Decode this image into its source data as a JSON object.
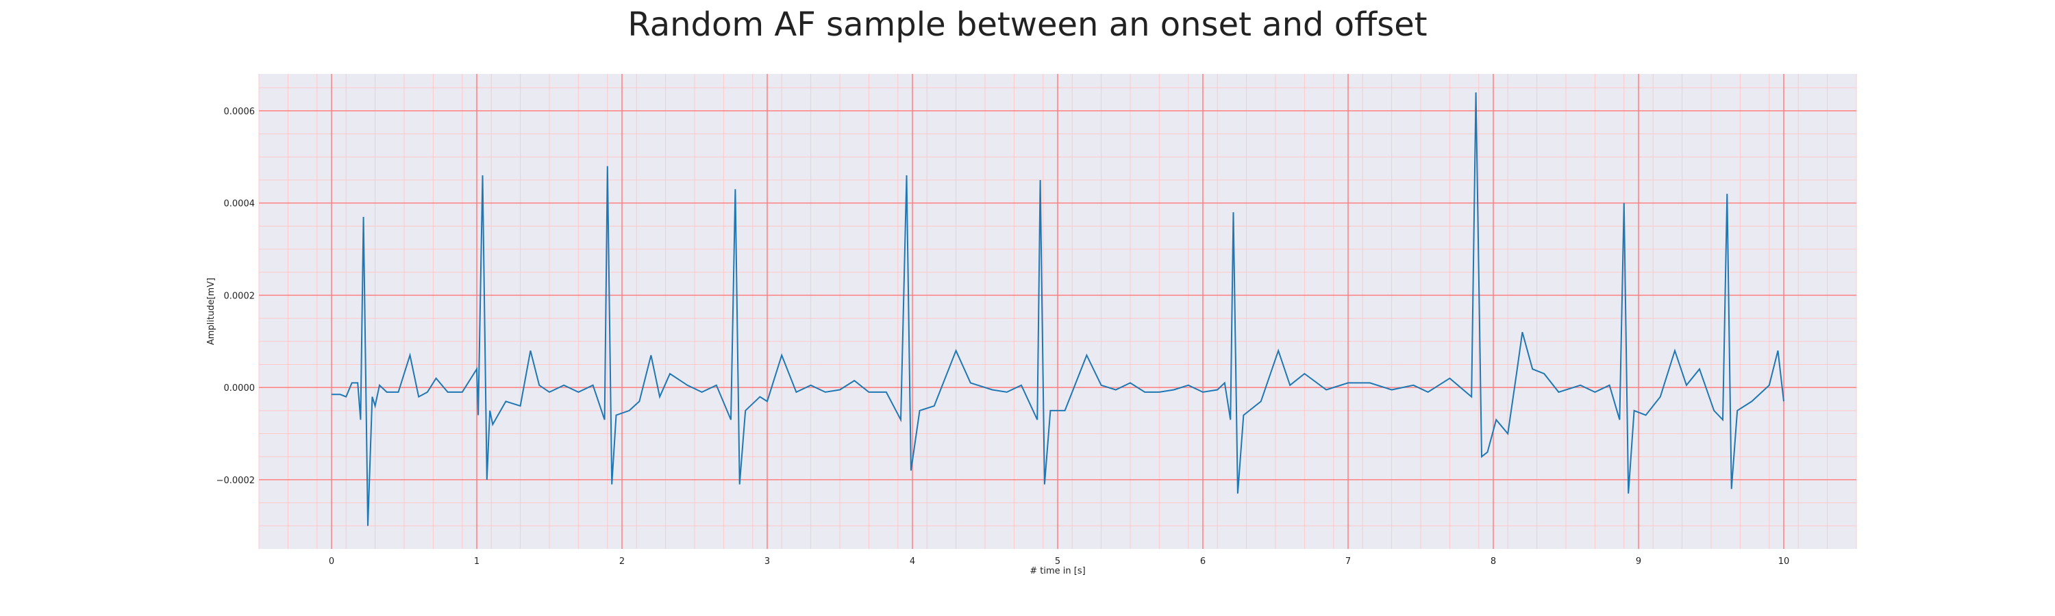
{
  "chart_data": {
    "type": "line",
    "title": "Random AF sample between an onset and offset",
    "xlabel": "# time in [s]",
    "ylabel": "Amplitude[mV]",
    "xlim": [
      -0.5,
      10.5
    ],
    "ylim": [
      -0.00035,
      0.00068
    ],
    "xticks": [
      0,
      1,
      2,
      3,
      4,
      5,
      6,
      7,
      8,
      9,
      10
    ],
    "xtick_labels": [
      "0",
      "1",
      "2",
      "3",
      "4",
      "5",
      "6",
      "7",
      "8",
      "9",
      "10"
    ],
    "yticks": [
      -0.0002,
      0.0,
      0.0002,
      0.0004,
      0.0006
    ],
    "ytick_labels": [
      "−0.0002",
      "0.0000",
      "0.0002",
      "0.0004",
      "0.0006"
    ],
    "grid": true,
    "minor_grid": true,
    "colors": {
      "plot_background": "#eaeaf2",
      "major_grid": "#ff8080",
      "minor_grid": "#ffc8c8",
      "line": "#1f77b4"
    },
    "series": [
      {
        "points": [
          [
            0.0,
            -1.5e-05
          ],
          [
            0.06,
            -1.5e-05
          ],
          [
            0.1,
            -2e-05
          ],
          [
            0.14,
            1e-05
          ],
          [
            0.18,
            1e-05
          ],
          [
            0.2,
            -7e-05
          ],
          [
            0.22,
            0.00037
          ],
          [
            0.25,
            -0.0003
          ],
          [
            0.28,
            -2e-05
          ],
          [
            0.3,
            -4e-05
          ],
          [
            0.33,
            5e-06
          ],
          [
            0.38,
            -1e-05
          ],
          [
            0.46,
            -1e-05
          ],
          [
            0.54,
            7e-05
          ],
          [
            0.6,
            -2e-05
          ],
          [
            0.66,
            -1e-05
          ],
          [
            0.72,
            2e-05
          ],
          [
            0.8,
            -1e-05
          ],
          [
            0.9,
            -1e-05
          ],
          [
            1.0,
            4e-05
          ],
          [
            1.01,
            -6e-05
          ],
          [
            1.04,
            0.00046
          ],
          [
            1.07,
            -0.0002
          ],
          [
            1.09,
            -5e-05
          ],
          [
            1.11,
            -8e-05
          ],
          [
            1.2,
            -3e-05
          ],
          [
            1.3,
            -4e-05
          ],
          [
            1.37,
            8e-05
          ],
          [
            1.43,
            5e-06
          ],
          [
            1.5,
            -1e-05
          ],
          [
            1.6,
            5e-06
          ],
          [
            1.7,
            -1e-05
          ],
          [
            1.8,
            5e-06
          ],
          [
            1.88,
            -7e-05
          ],
          [
            1.9,
            0.00048
          ],
          [
            1.93,
            -0.00021
          ],
          [
            1.96,
            -6e-05
          ],
          [
            2.05,
            -5e-05
          ],
          [
            2.12,
            -3e-05
          ],
          [
            2.2,
            7e-05
          ],
          [
            2.26,
            -2e-05
          ],
          [
            2.33,
            3e-05
          ],
          [
            2.45,
            5e-06
          ],
          [
            2.55,
            -1e-05
          ],
          [
            2.65,
            5e-06
          ],
          [
            2.75,
            -7e-05
          ],
          [
            2.78,
            0.00043
          ],
          [
            2.81,
            -0.00021
          ],
          [
            2.85,
            -5e-05
          ],
          [
            2.95,
            -2e-05
          ],
          [
            3.0,
            -3e-05
          ],
          [
            3.1,
            7e-05
          ],
          [
            3.2,
            -1e-05
          ],
          [
            3.3,
            5e-06
          ],
          [
            3.4,
            -1e-05
          ],
          [
            3.5,
            -5e-06
          ],
          [
            3.6,
            1.5e-05
          ],
          [
            3.7,
            -1e-05
          ],
          [
            3.82,
            -1e-05
          ],
          [
            3.92,
            -7e-05
          ],
          [
            3.96,
            0.00046
          ],
          [
            3.99,
            -0.00018
          ],
          [
            4.05,
            -5e-05
          ],
          [
            4.15,
            -4e-05
          ],
          [
            4.3,
            8e-05
          ],
          [
            4.4,
            1e-05
          ],
          [
            4.55,
            -5e-06
          ],
          [
            4.65,
            -1e-05
          ],
          [
            4.75,
            5e-06
          ],
          [
            4.86,
            -7e-05
          ],
          [
            4.88,
            0.00045
          ],
          [
            4.91,
            -0.00021
          ],
          [
            4.95,
            -5e-05
          ],
          [
            5.05,
            -5e-05
          ],
          [
            5.2,
            7e-05
          ],
          [
            5.3,
            5e-06
          ],
          [
            5.4,
            -5e-06
          ],
          [
            5.5,
            1e-05
          ],
          [
            5.6,
            -1e-05
          ],
          [
            5.7,
            -1e-05
          ],
          [
            5.8,
            -5e-06
          ],
          [
            5.9,
            5e-06
          ],
          [
            6.0,
            -1e-05
          ],
          [
            6.1,
            -5e-06
          ],
          [
            6.15,
            1e-05
          ],
          [
            6.19,
            -7e-05
          ],
          [
            6.21,
            0.00038
          ],
          [
            6.24,
            -0.00023
          ],
          [
            6.28,
            -6e-05
          ],
          [
            6.4,
            -3e-05
          ],
          [
            6.52,
            8e-05
          ],
          [
            6.6,
            5e-06
          ],
          [
            6.7,
            3e-05
          ],
          [
            6.85,
            -5e-06
          ],
          [
            7.0,
            1e-05
          ],
          [
            7.15,
            1e-05
          ],
          [
            7.3,
            -5e-06
          ],
          [
            7.45,
            5e-06
          ],
          [
            7.55,
            -1e-05
          ],
          [
            7.7,
            2e-05
          ],
          [
            7.85,
            -2e-05
          ],
          [
            7.88,
            0.00064
          ],
          [
            7.92,
            -0.00015
          ],
          [
            7.96,
            -0.00014
          ],
          [
            8.02,
            -7e-05
          ],
          [
            8.1,
            -0.0001
          ],
          [
            8.16,
            3e-05
          ],
          [
            8.2,
            0.00012
          ],
          [
            8.27,
            4e-05
          ],
          [
            8.35,
            3e-05
          ],
          [
            8.45,
            -1e-05
          ],
          [
            8.6,
            5e-06
          ],
          [
            8.7,
            -1e-05
          ],
          [
            8.8,
            5e-06
          ],
          [
            8.87,
            -7e-05
          ],
          [
            8.9,
            0.0004
          ],
          [
            8.93,
            -0.00023
          ],
          [
            8.97,
            -5e-05
          ],
          [
            9.05,
            -6e-05
          ],
          [
            9.15,
            -2e-05
          ],
          [
            9.25,
            8e-05
          ],
          [
            9.33,
            5e-06
          ],
          [
            9.42,
            4e-05
          ],
          [
            9.52,
            -5e-05
          ],
          [
            9.58,
            -7e-05
          ],
          [
            9.61,
            0.00042
          ],
          [
            9.64,
            -0.00022
          ],
          [
            9.68,
            -5e-05
          ],
          [
            9.78,
            -3e-05
          ],
          [
            9.9,
            5e-06
          ],
          [
            9.96,
            8e-05
          ],
          [
            10.0,
            -3e-05
          ]
        ]
      }
    ]
  }
}
